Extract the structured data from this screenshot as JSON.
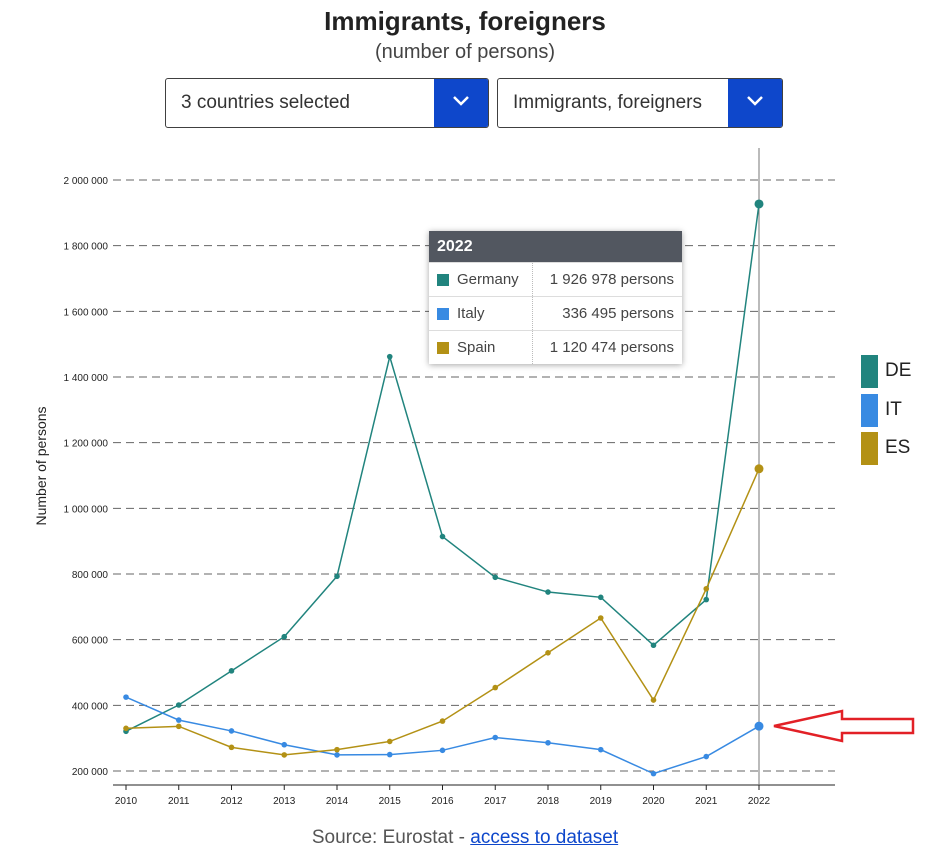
{
  "chart_data": {
    "type": "line",
    "title": "Immigrants, foreigners",
    "subtitle": "(number of persons)",
    "xlabel": "",
    "ylabel": "Number of persons",
    "x": [
      "2010",
      "2011",
      "2012",
      "2013",
      "2014",
      "2015",
      "2016",
      "2017",
      "2018",
      "2019",
      "2020",
      "2021",
      "2022"
    ],
    "ylim": [
      170000,
      2100000
    ],
    "yticks": [
      200000,
      400000,
      600000,
      800000,
      1000000,
      1200000,
      1400000,
      1600000,
      1800000,
      2000000
    ],
    "ytick_labels": [
      "200 000",
      "400 000",
      "600 000",
      "800 000",
      "1 000 000",
      "1 200 000",
      "1 400 000",
      "1 600 000",
      "1 800 000",
      "2 000 000"
    ],
    "grid": true,
    "series": [
      {
        "code": "DE",
        "name": "Germany",
        "color": "#21847e",
        "values": [
          321000,
          401000,
          505000,
          609000,
          793000,
          1462000,
          914000,
          790000,
          745000,
          729000,
          583000,
          722000,
          1926978
        ]
      },
      {
        "code": "IT",
        "name": "Italy",
        "color": "#388ae2",
        "values": [
          425000,
          355000,
          322000,
          280000,
          249000,
          250000,
          263000,
          302000,
          286000,
          265000,
          192000,
          244000,
          336495
        ]
      },
      {
        "code": "ES",
        "name": "Spain",
        "color": "#b39115",
        "values": [
          330000,
          336000,
          272000,
          249000,
          265000,
          290000,
          352000,
          454000,
          560000,
          666000,
          416000,
          755000,
          1120474
        ]
      }
    ],
    "highlight_year": "2022"
  },
  "controls": {
    "countries_label": "3 countries selected",
    "indicator_label": "Immigrants, foreigners"
  },
  "tooltip": {
    "year": "2022",
    "rows": [
      {
        "name": "Germany",
        "value": "1 926 978 persons",
        "color": "#21847e"
      },
      {
        "name": "Italy",
        "value": "336 495 persons",
        "color": "#388ae2"
      },
      {
        "name": "Spain",
        "value": "1 120 474 persons",
        "color": "#b39115"
      }
    ]
  },
  "legend": [
    {
      "label": "DE",
      "color": "#21847e"
    },
    {
      "label": "IT",
      "color": "#388ae2"
    },
    {
      "label": "ES",
      "color": "#b39115"
    }
  ],
  "footer": {
    "source_text": "Source: Eurostat - ",
    "link_text": "access to dataset"
  }
}
